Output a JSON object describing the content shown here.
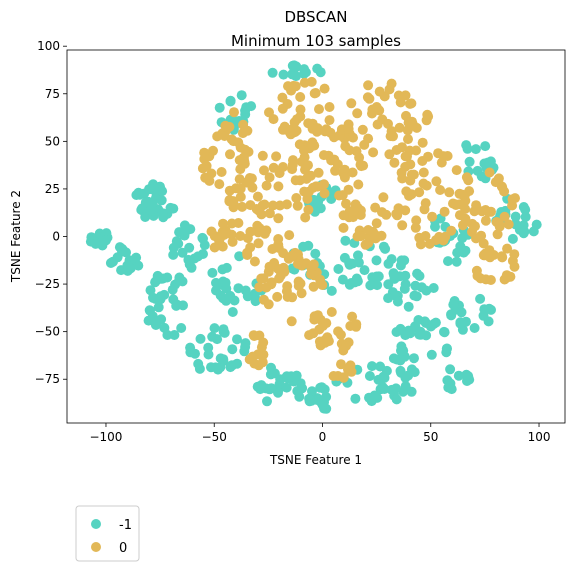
{
  "chart_data": {
    "type": "scatter",
    "title": "DBSCAN",
    "subtitle": "Minimum 103 samples",
    "xlabel": "TSNE Feature 1",
    "ylabel": "TSNE Feature 2",
    "xlim": [
      -118,
      112
    ],
    "ylim": [
      -98,
      98
    ],
    "xticks": [
      -100,
      -50,
      0,
      50,
      100
    ],
    "yticks": [
      -75,
      -50,
      -25,
      0,
      25,
      50,
      75,
      100
    ],
    "xtick_labels": [
      "−100",
      "−50",
      "0",
      "50",
      "100"
    ],
    "ytick_labels": [
      "−75",
      "−50",
      "−25",
      "0",
      "25",
      "50",
      "75",
      "100"
    ],
    "grid": false,
    "legend_position": "below-left",
    "series": [
      {
        "name": "-1",
        "color": "#56d3c1",
        "clusters": [
          {
            "cx": -105,
            "cy": 0,
            "rx": 6,
            "ry": 6,
            "n": 14
          },
          {
            "cx": -92,
            "cy": -12,
            "rx": 8,
            "ry": 7,
            "n": 16
          },
          {
            "cx": -78,
            "cy": 18,
            "rx": 10,
            "ry": 10,
            "n": 28
          },
          {
            "cx": -72,
            "cy": -35,
            "rx": 10,
            "ry": 18,
            "n": 34
          },
          {
            "cx": -62,
            "cy": -5,
            "rx": 8,
            "ry": 12,
            "n": 20
          },
          {
            "cx": -48,
            "cy": -60,
            "rx": 15,
            "ry": 12,
            "n": 30
          },
          {
            "cx": -40,
            "cy": -25,
            "rx": 12,
            "ry": 15,
            "n": 26
          },
          {
            "cx": -40,
            "cy": 65,
            "rx": 8,
            "ry": 10,
            "n": 16
          },
          {
            "cx": -20,
            "cy": -78,
            "rx": 12,
            "ry": 10,
            "n": 24
          },
          {
            "cx": 0,
            "cy": -85,
            "rx": 10,
            "ry": 6,
            "n": 16
          },
          {
            "cx": -12,
            "cy": 86,
            "rx": 12,
            "ry": 5,
            "n": 14
          },
          {
            "cx": 0,
            "cy": 20,
            "rx": 8,
            "ry": 8,
            "n": 14
          },
          {
            "cx": 10,
            "cy": -15,
            "rx": 30,
            "ry": 14,
            "n": 50
          },
          {
            "cx": 25,
            "cy": -75,
            "rx": 20,
            "ry": 12,
            "n": 36
          },
          {
            "cx": 45,
            "cy": -55,
            "rx": 14,
            "ry": 12,
            "n": 28
          },
          {
            "cx": 40,
            "cy": -28,
            "rx": 12,
            "ry": 10,
            "n": 20
          },
          {
            "cx": 60,
            "cy": 0,
            "rx": 10,
            "ry": 15,
            "n": 20
          },
          {
            "cx": 68,
            "cy": -40,
            "rx": 10,
            "ry": 10,
            "n": 18
          },
          {
            "cx": 72,
            "cy": 40,
            "rx": 8,
            "ry": 12,
            "n": 16
          },
          {
            "cx": 90,
            "cy": 10,
            "rx": 10,
            "ry": 12,
            "n": 20
          },
          {
            "cx": 60,
            "cy": -75,
            "rx": 8,
            "ry": 6,
            "n": 10
          }
        ]
      },
      {
        "name": "0",
        "color": "#e2b857",
        "clusters": [
          {
            "cx": -45,
            "cy": 45,
            "rx": 12,
            "ry": 22,
            "n": 36
          },
          {
            "cx": -25,
            "cy": 20,
            "rx": 20,
            "ry": 25,
            "n": 52
          },
          {
            "cx": -10,
            "cy": 65,
            "rx": 15,
            "ry": 20,
            "n": 44
          },
          {
            "cx": 5,
            "cy": 40,
            "rx": 15,
            "ry": 20,
            "n": 40
          },
          {
            "cx": 20,
            "cy": 10,
            "rx": 12,
            "ry": 15,
            "n": 28
          },
          {
            "cx": 30,
            "cy": 60,
            "rx": 20,
            "ry": 22,
            "n": 52
          },
          {
            "cx": 50,
            "cy": 20,
            "rx": 18,
            "ry": 25,
            "n": 52
          },
          {
            "cx": -15,
            "cy": -25,
            "rx": 15,
            "ry": 20,
            "n": 44
          },
          {
            "cx": 5,
            "cy": -50,
            "rx": 12,
            "ry": 12,
            "n": 28
          },
          {
            "cx": -30,
            "cy": -60,
            "rx": 5,
            "ry": 10,
            "n": 12
          },
          {
            "cx": 75,
            "cy": 15,
            "rx": 15,
            "ry": 20,
            "n": 36
          },
          {
            "cx": 80,
            "cy": -15,
            "rx": 10,
            "ry": 12,
            "n": 22
          },
          {
            "cx": -45,
            "cy": 0,
            "rx": 8,
            "ry": 8,
            "n": 14
          },
          {
            "cx": -28,
            "cy": -5,
            "rx": 8,
            "ry": 10,
            "n": 14
          },
          {
            "cx": 8,
            "cy": -70,
            "rx": 6,
            "ry": 5,
            "n": 8
          }
        ]
      }
    ]
  }
}
